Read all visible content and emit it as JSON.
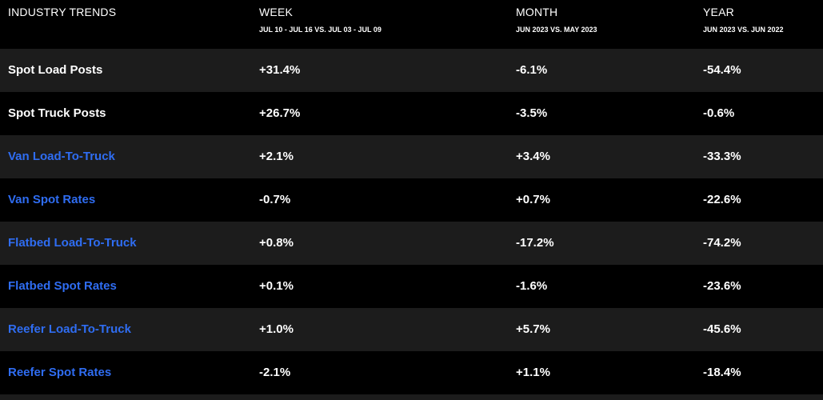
{
  "colors": {
    "background": "#000000",
    "row_alt": "#1c1c1c",
    "text": "#ffffff",
    "link": "#2f6df2"
  },
  "header": {
    "title": "INDUSTRY TRENDS",
    "week": "WEEK",
    "week_range": "JUL 10 - JUL 16 VS. JUL 03 - JUL 09",
    "month": "MONTH",
    "month_range": "JUN 2023 VS. MAY 2023",
    "year": "YEAR",
    "year_range": "JUN 2023 VS. JUN 2022"
  },
  "rows": [
    {
      "label": "Spot Load Posts",
      "week": "+31.4%",
      "month": "-6.1%",
      "year": "-54.4%"
    },
    {
      "label": "Spot Truck Posts",
      "week": "+26.7%",
      "month": "-3.5%",
      "year": "-0.6%"
    },
    {
      "label": "Van Load-To-Truck",
      "week": "+2.1%",
      "month": "+3.4%",
      "year": "-33.3%"
    },
    {
      "label": "Van Spot Rates",
      "week": "-0.7%",
      "month": "+0.7%",
      "year": "-22.6%"
    },
    {
      "label": "Flatbed Load-To-Truck",
      "week": "+0.8%",
      "month": "-17.2%",
      "year": "-74.2%"
    },
    {
      "label": "Flatbed Spot Rates",
      "week": "+0.1%",
      "month": "-1.6%",
      "year": "-23.6%"
    },
    {
      "label": "Reefer Load-To-Truck",
      "week": "+1.0%",
      "month": "+5.7%",
      "year": "-45.6%"
    },
    {
      "label": "Reefer Spot Rates",
      "week": "-2.1%",
      "month": "+1.1%",
      "year": "-18.4%"
    }
  ]
}
